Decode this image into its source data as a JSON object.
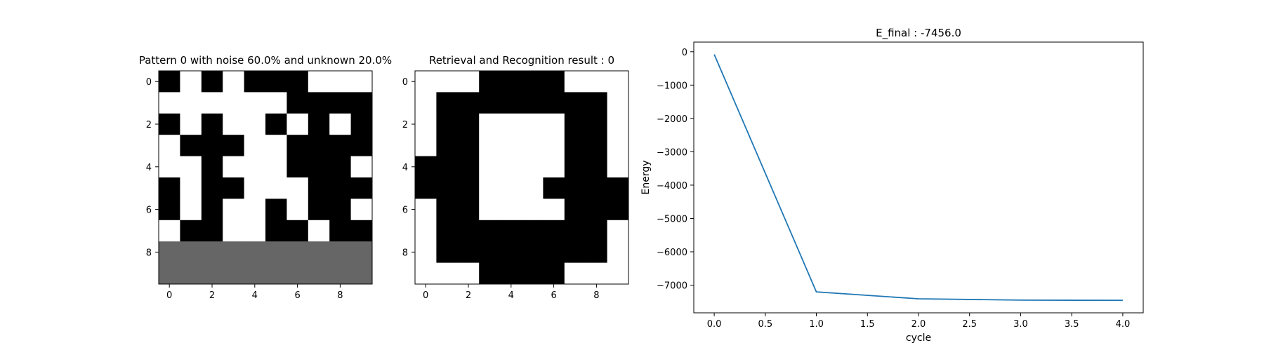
{
  "chart_data": [
    {
      "type": "heatmap",
      "title": "Pattern 0 with noise 60.0% and unknown 20.0%",
      "xticks": [
        0,
        2,
        4,
        6,
        8
      ],
      "yticks": [
        0,
        2,
        4,
        6,
        8
      ],
      "legend": "",
      "colors": {
        "-1": "#000000",
        "0": "#666666",
        "1": "#ffffff"
      },
      "grid": [
        [
          -1,
          1,
          -1,
          1,
          -1,
          -1,
          -1,
          1,
          1,
          1
        ],
        [
          1,
          1,
          1,
          1,
          1,
          1,
          -1,
          -1,
          -1,
          -1
        ],
        [
          -1,
          1,
          -1,
          1,
          1,
          -1,
          1,
          -1,
          1,
          -1
        ],
        [
          1,
          -1,
          -1,
          -1,
          1,
          1,
          -1,
          -1,
          -1,
          -1
        ],
        [
          1,
          1,
          -1,
          1,
          1,
          1,
          -1,
          -1,
          -1,
          1
        ],
        [
          -1,
          1,
          -1,
          -1,
          1,
          1,
          1,
          -1,
          -1,
          -1
        ],
        [
          -1,
          1,
          -1,
          1,
          1,
          -1,
          1,
          -1,
          -1,
          1
        ],
        [
          1,
          -1,
          -1,
          1,
          1,
          -1,
          -1,
          1,
          -1,
          -1
        ],
        [
          0,
          0,
          0,
          0,
          0,
          0,
          0,
          0,
          0,
          0
        ],
        [
          0,
          0,
          0,
          0,
          0,
          0,
          0,
          0,
          0,
          0
        ]
      ]
    },
    {
      "type": "heatmap",
      "title": "Retrieval and Recognition result : 0",
      "xticks": [
        0,
        2,
        4,
        6,
        8
      ],
      "yticks": [
        0,
        2,
        4,
        6,
        8
      ],
      "legend": "",
      "colors": {
        "-1": "#000000",
        "0": "#666666",
        "1": "#ffffff"
      },
      "grid": [
        [
          1,
          1,
          1,
          -1,
          -1,
          -1,
          -1,
          1,
          1,
          1
        ],
        [
          1,
          -1,
          -1,
          -1,
          -1,
          -1,
          -1,
          -1,
          -1,
          1
        ],
        [
          1,
          -1,
          -1,
          1,
          1,
          1,
          1,
          -1,
          -1,
          1
        ],
        [
          1,
          -1,
          -1,
          1,
          1,
          1,
          1,
          -1,
          -1,
          1
        ],
        [
          -1,
          -1,
          -1,
          1,
          1,
          1,
          1,
          -1,
          -1,
          1
        ],
        [
          -1,
          -1,
          -1,
          1,
          1,
          1,
          -1,
          -1,
          -1,
          -1
        ],
        [
          1,
          -1,
          -1,
          1,
          1,
          1,
          1,
          -1,
          -1,
          -1
        ],
        [
          1,
          -1,
          -1,
          -1,
          -1,
          -1,
          -1,
          -1,
          -1,
          1
        ],
        [
          1,
          -1,
          -1,
          -1,
          -1,
          -1,
          -1,
          -1,
          -1,
          1
        ],
        [
          1,
          1,
          1,
          -1,
          -1,
          -1,
          -1,
          1,
          1,
          1
        ]
      ]
    },
    {
      "type": "line",
      "title": "E_final : -7456.0",
      "xlabel": "cycle",
      "ylabel": "Energy",
      "x": [
        0.0,
        1.0,
        2.0,
        3.0,
        4.0
      ],
      "series": [
        {
          "values": [
            -80,
            -7200,
            -7410,
            -7450,
            -7456
          ],
          "color": "#1f77b4"
        }
      ],
      "xlim": [
        -0.2,
        4.2
      ],
      "ylim": [
        -7830,
        290
      ],
      "xticks": [
        "0.0",
        "0.5",
        "1.0",
        "1.5",
        "2.0",
        "2.5",
        "3.0",
        "3.5",
        "4.0"
      ],
      "yticks": [
        "0",
        "−1000",
        "−2000",
        "−3000",
        "−4000",
        "−5000",
        "−6000",
        "−7000"
      ],
      "grid": false,
      "legend": ""
    }
  ]
}
